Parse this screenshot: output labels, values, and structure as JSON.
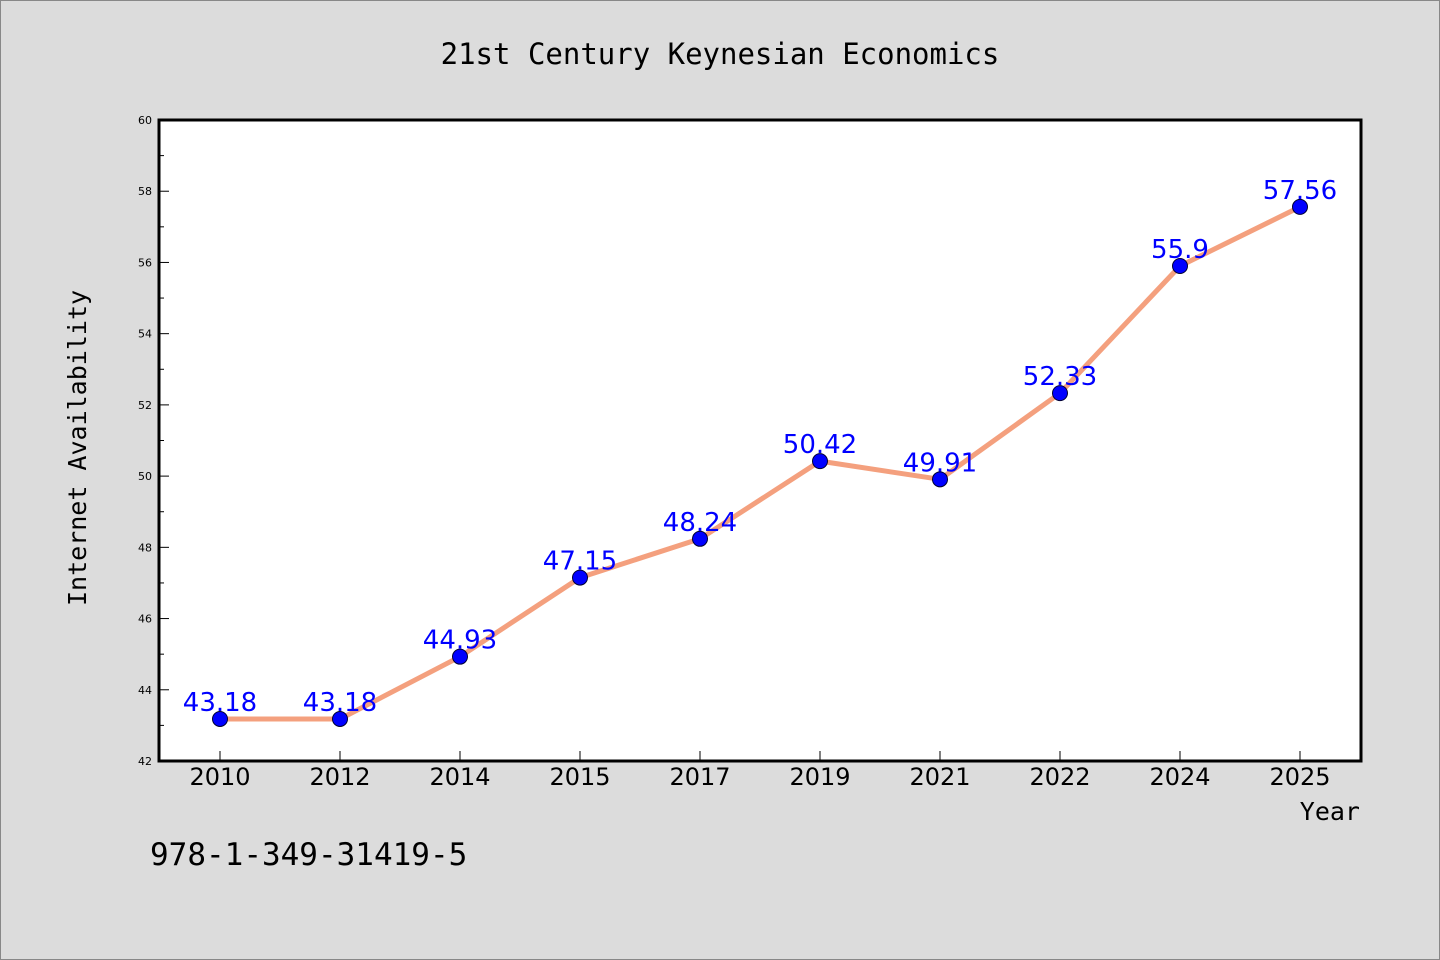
{
  "chart_data": {
    "type": "line",
    "title": "21st Century Keynesian Economics",
    "xlabel": "Year",
    "ylabel": "Internet Availability",
    "categories": [
      "2010",
      "2012",
      "2014",
      "2015",
      "2017",
      "2019",
      "2021",
      "2022",
      "2024",
      "2025"
    ],
    "series": [
      {
        "values": [
          43.18,
          43.18,
          44.93,
          47.15,
          48.24,
          50.42,
          49.91,
          52.33,
          55.9,
          57.56
        ],
        "data_labels": [
          "43.18",
          "43.18",
          "44.93",
          "47.15",
          "48.24",
          "50.42",
          "49.91",
          "52.33",
          "55.9",
          "57.56"
        ]
      }
    ],
    "ylim": [
      42,
      60
    ],
    "yticks": [
      42,
      44,
      46,
      48,
      50,
      52,
      54,
      56,
      58,
      60
    ],
    "grid": false,
    "colors": {
      "line": "#f4a07e",
      "marker": "#0000ff",
      "label": "#0000ff",
      "background": "#dcdcdc",
      "plot_background": "#ffffff"
    }
  },
  "footer_text": "978-1-349-31419-5"
}
